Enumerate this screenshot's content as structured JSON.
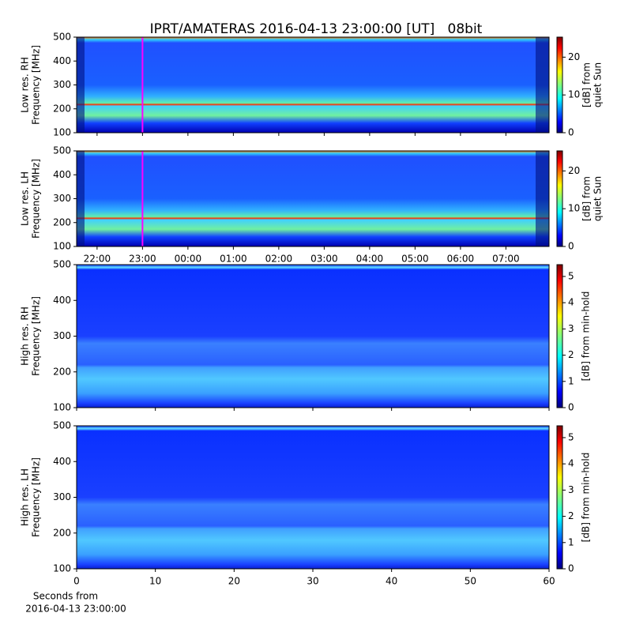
{
  "figure_title": "IPRT/AMATERAS 2016-04-13 23:00:00 [UT]   08bit",
  "chart_data": [
    {
      "type": "heatmap",
      "ylabel": [
        "Low res. RH",
        "Frequency [MHz]"
      ],
      "ylim": [
        100,
        500
      ],
      "yticks": [
        100,
        200,
        300,
        400,
        500
      ],
      "xlim": [
        21.55,
        31.95
      ],
      "colorbar": {
        "label": [
          "[dB] from",
          "quiet Sun"
        ],
        "lim": [
          0,
          25.3
        ],
        "ticks": [
          0,
          10,
          20
        ]
      },
      "marker": {
        "x": 23,
        "color": "#ff00ff"
      }
    },
    {
      "type": "heatmap",
      "ylabel": [
        "Low res. LH",
        "Frequency [MHz]"
      ],
      "ylim": [
        100,
        500
      ],
      "yticks": [
        100,
        200,
        300,
        400,
        500
      ],
      "xlim": [
        21.55,
        31.95
      ],
      "xticks": [
        {
          "value": 22,
          "label": "22:00"
        },
        {
          "value": 23,
          "label": "23:00"
        },
        {
          "value": 24,
          "label": "00:00"
        },
        {
          "value": 25,
          "label": "01:00"
        },
        {
          "value": 26,
          "label": "02:00"
        },
        {
          "value": 27,
          "label": "03:00"
        },
        {
          "value": 28,
          "label": "04:00"
        },
        {
          "value": 29,
          "label": "05:00"
        },
        {
          "value": 30,
          "label": "06:00"
        },
        {
          "value": 31,
          "label": "07:00"
        }
      ],
      "colorbar": {
        "label": [
          "[dB] from",
          "quiet Sun"
        ],
        "lim": [
          0,
          25.3
        ],
        "ticks": [
          0,
          10,
          20
        ]
      },
      "marker": {
        "x": 23,
        "color": "#ff00ff"
      }
    },
    {
      "type": "heatmap",
      "ylabel": [
        "High res. RH",
        "Frequency [MHz]"
      ],
      "ylim": [
        100,
        500
      ],
      "yticks": [
        100,
        200,
        300,
        400,
        500
      ],
      "xlim": [
        0,
        60
      ],
      "colorbar": {
        "label": [
          "[dB] from min-hold"
        ],
        "lim": [
          0,
          5.45
        ],
        "ticks": [
          0,
          1,
          2,
          3,
          4,
          5
        ]
      }
    },
    {
      "type": "heatmap",
      "ylabel": [
        "High res. LH",
        "Frequency [MHz]"
      ],
      "ylim": [
        100,
        500
      ],
      "yticks": [
        100,
        200,
        300,
        400,
        500
      ],
      "xlim": [
        0,
        60
      ],
      "xticks": [
        0,
        10,
        20,
        30,
        40,
        50,
        60
      ],
      "xlabel": [
        "Seconds from",
        "2016-04-13 23:00:00"
      ],
      "colorbar": {
        "label": [
          "[dB] from min-hold"
        ],
        "lim": [
          0,
          5.45
        ],
        "ticks": [
          0,
          1,
          2,
          3,
          4,
          5
        ]
      }
    }
  ]
}
